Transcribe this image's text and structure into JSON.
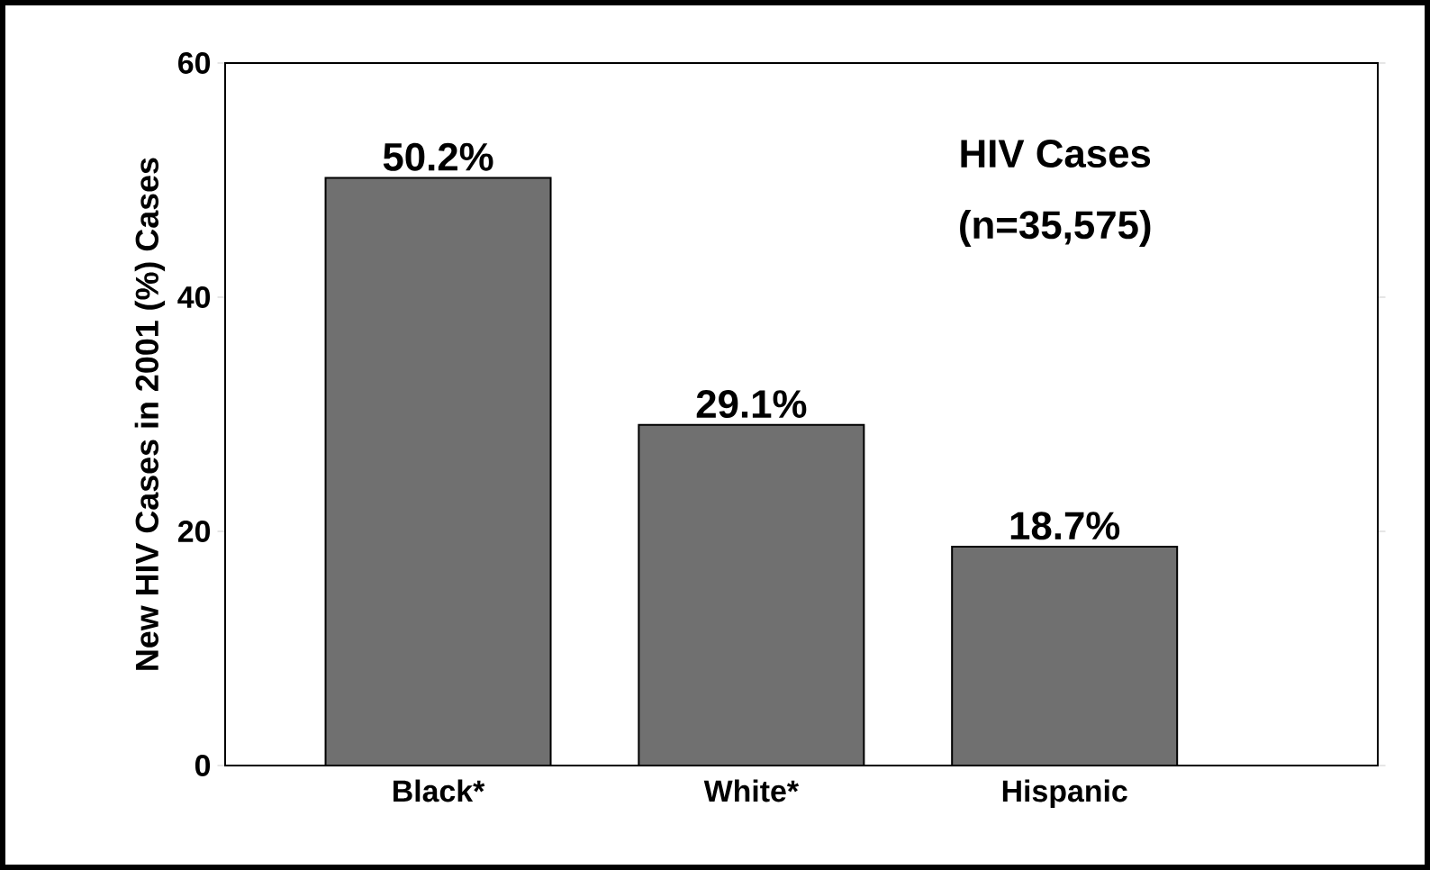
{
  "chart_data": {
    "type": "bar",
    "ylabel": "New HIV Cases in 2001 (%) Cases",
    "categories": [
      "Black*",
      "White*",
      "Hispanic"
    ],
    "values": [
      50.2,
      29.1,
      18.7
    ],
    "value_labels": [
      "50.2%",
      "29.1%",
      "18.7%"
    ],
    "color": "#707070",
    "ylim": [
      0,
      60
    ],
    "yticks": [
      0,
      20,
      40,
      60
    ],
    "annotations": [
      "HIV Cases",
      "(n=35,575)"
    ]
  }
}
